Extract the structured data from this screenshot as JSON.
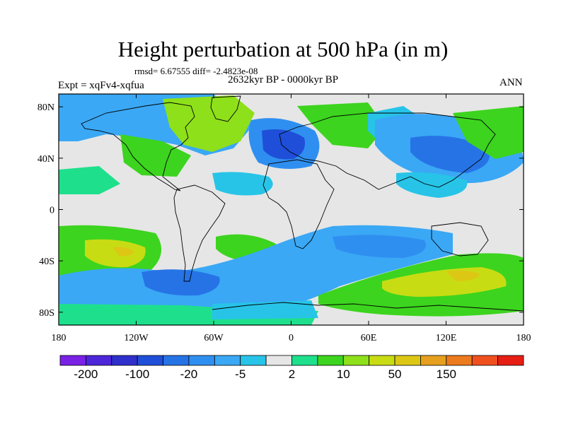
{
  "title": "Height perturbation at 500 hPa (in m)",
  "stats": "rmsd= 6.67555 diff= -2.4823e-08",
  "period": "2632kyr BP - 0000kyr BP",
  "experiment": "Expt = xqFv4-xqfua",
  "season": "ANN",
  "axes": {
    "lat_labels": [
      "80N",
      "40N",
      "0",
      "40S",
      "80S"
    ],
    "lat_values": [
      80,
      40,
      0,
      -40,
      -80
    ],
    "lon_labels": [
      "180",
      "120W",
      "60W",
      "0",
      "60E",
      "120E",
      "180"
    ],
    "lon_values": [
      -180,
      -120,
      -60,
      0,
      60,
      120,
      180
    ],
    "lat_range": [
      -90,
      90
    ],
    "lon_range": [
      -180,
      180
    ]
  },
  "colorbar": {
    "colors": [
      "#7a21e6",
      "#4d26d9",
      "#2f2fcc",
      "#1f4fd9",
      "#2673e6",
      "#2f8ff0",
      "#3aa8f5",
      "#27c4e8",
      "#e6e6e6",
      "#1ee08c",
      "#3cd41e",
      "#8ee01a",
      "#c8dc14",
      "#dcc814",
      "#e6a01e",
      "#ec7a1e",
      "#f0501e",
      "#e61e14"
    ],
    "labels": [
      "-200",
      "-100",
      "-20",
      "-5",
      "2",
      "10",
      "50",
      "150"
    ]
  },
  "icons": [
    "world-continents"
  ]
}
